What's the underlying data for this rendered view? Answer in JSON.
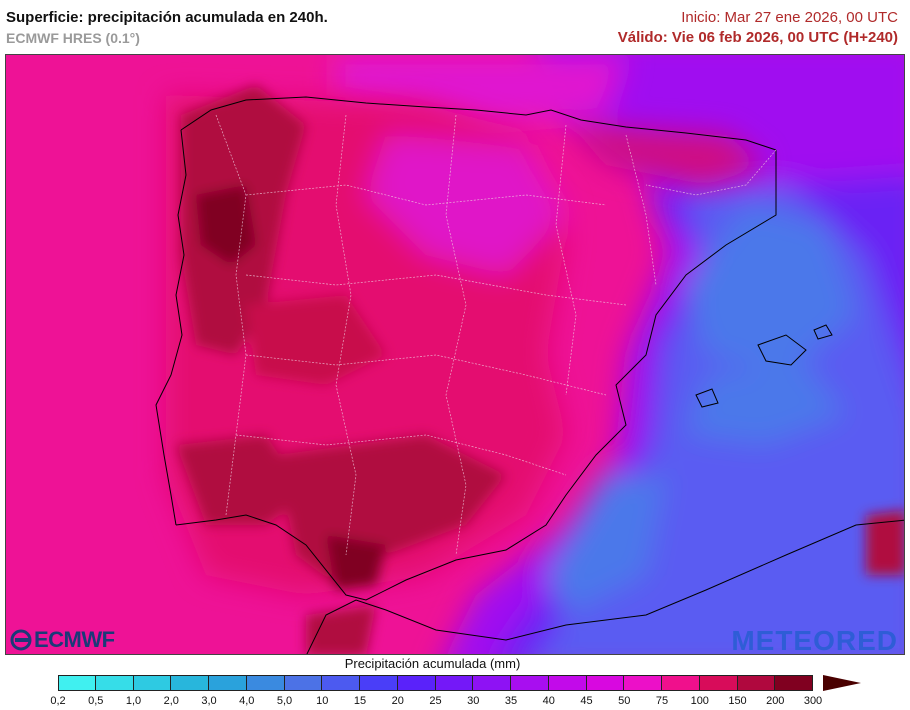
{
  "header": {
    "title": "Superficie: precipitación acumulada en 240h.",
    "subtitle": "ECMWF HRES (0.1°)",
    "start": "Inicio: Mar 27 ene 2026, 00 UTC",
    "valid": "Válido: Vie 06 feb 2026, 00 UTC (H+240)"
  },
  "logos": {
    "left": "ECMWF",
    "right": "METEORED"
  },
  "legend": {
    "title": "Precipitación acumulada (mm)",
    "labels": [
      "0,2",
      "0,5",
      "1,0",
      "2,0",
      "3,0",
      "4,0",
      "5,0",
      "10",
      "15",
      "20",
      "25",
      "30",
      "35",
      "40",
      "45",
      "50",
      "75",
      "100",
      "150",
      "200",
      "300"
    ],
    "colors": [
      "#40f0f0",
      "#36dde8",
      "#2ecae2",
      "#28b6dc",
      "#2aa2dc",
      "#3a8ae0",
      "#4c72e6",
      "#4c5af0",
      "#4a3ef8",
      "#5a22fa",
      "#7418f8",
      "#8e12f4",
      "#a80ef0",
      "#c20aea",
      "#d808e0",
      "#ec10c8",
      "#f0108c",
      "#d80c5a",
      "#b0083e",
      "#800020",
      "#4a0000"
    ]
  }
}
